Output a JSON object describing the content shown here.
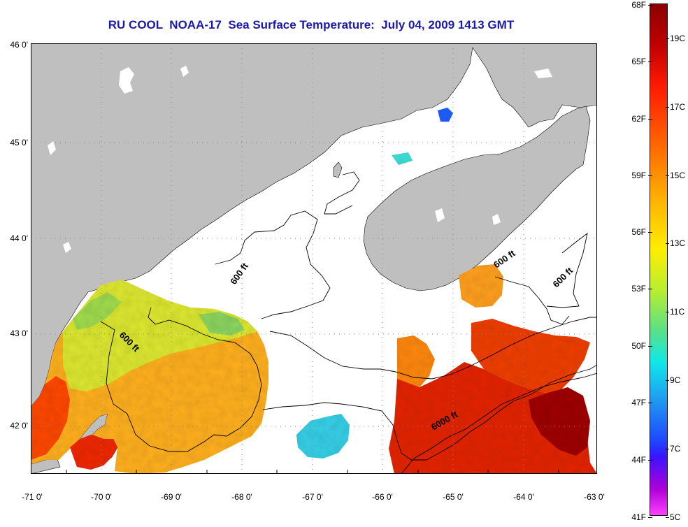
{
  "title": "RU COOL  NOAA-17  Sea Surface Temperature:  July 04, 2009 1413 GMT",
  "axes": {
    "lat_labels": [
      "46 0'",
      "45 0'",
      "44 0'",
      "43 0'",
      "42 0'"
    ],
    "lon_labels": [
      "-71 0'",
      "-70 0'",
      "-69 0'",
      "-68 0'",
      "-67 0'",
      "-66 0'",
      "-65 0'",
      "-64 0'",
      "-63 0'"
    ],
    "lat_range": [
      41.5,
      46.0
    ],
    "lon_range": [
      -71.0,
      -63.0
    ]
  },
  "contour_labels": [
    "600 ft",
    "600 ft",
    "600 ft",
    "600 ft",
    "6000 ft"
  ],
  "colorbar": {
    "fahrenheit_labels": [
      "68F",
      "65F",
      "62F",
      "59F",
      "56F",
      "53F",
      "50F",
      "47F",
      "44F",
      "41F"
    ],
    "celsius_labels": [
      "19C",
      "17C",
      "15C",
      "13C",
      "11C",
      "9C",
      "7C",
      "5C"
    ],
    "fahrenheit_range": [
      41,
      68
    ],
    "celsius_range": [
      5,
      20
    ]
  },
  "colors": {
    "land": "#bfbfbf",
    "no_data": "#ffffff",
    "title": "#1a1aa8",
    "warm_max": "#8b0000",
    "cold_min": "#ff40ff"
  }
}
